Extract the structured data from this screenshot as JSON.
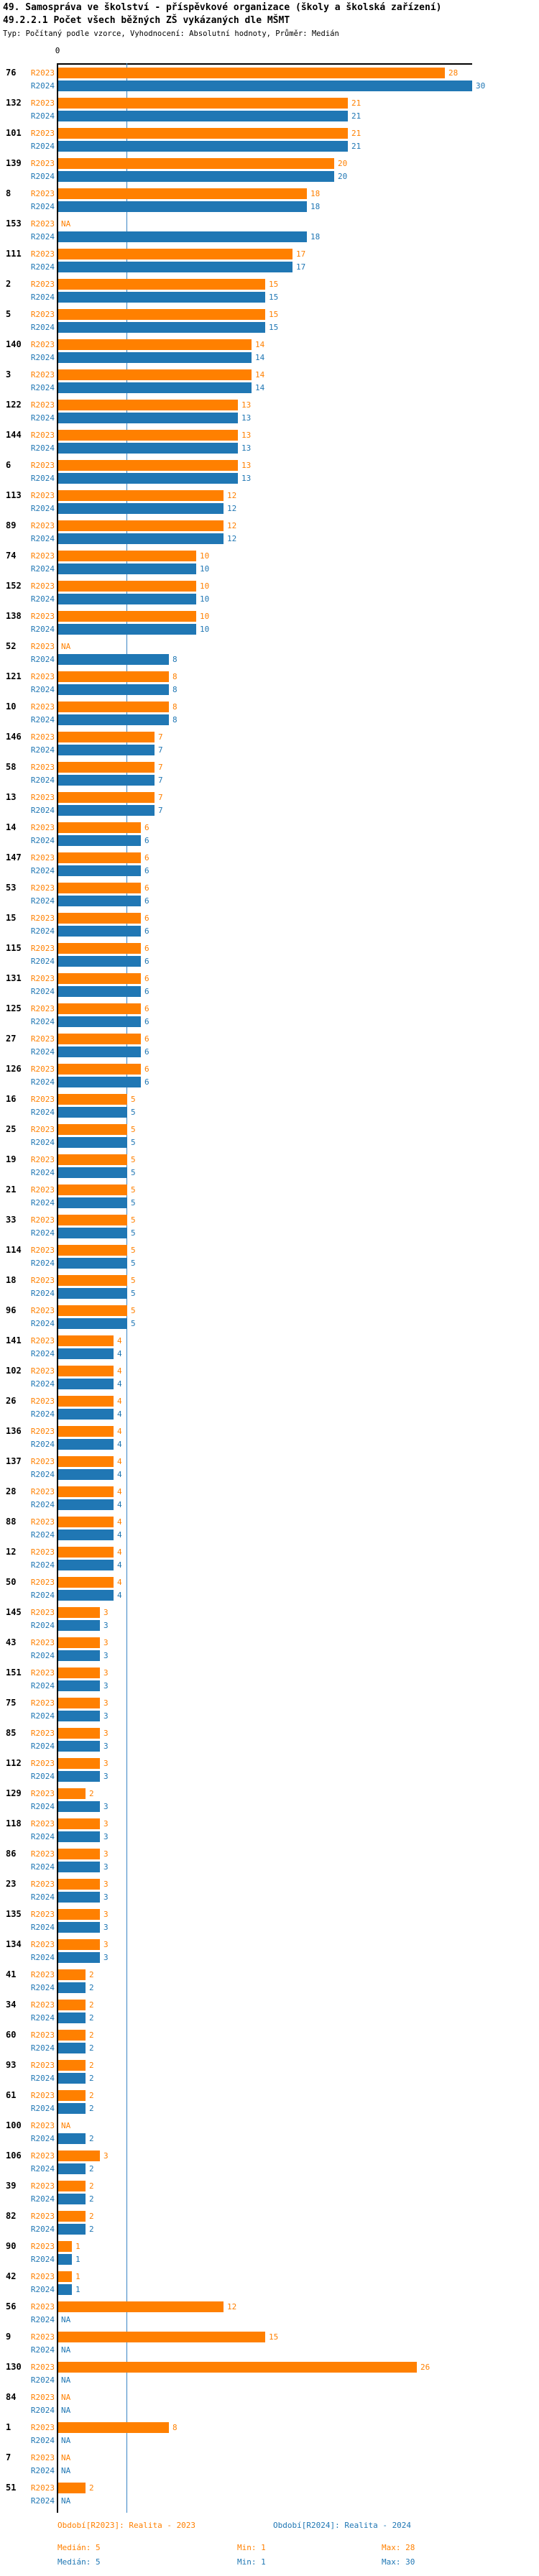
{
  "header": {
    "title": "49. Samospráva ve školství - příspěvkové organizace (školy a školská zařízení)",
    "subtitle": "49.2.2.1 Počet všech běžných ZŠ vykázaných dle MŠMT",
    "meta": "Typ: Počítaný podle vzorce, Vyhodnocení: Absolutní hodnoty, Průměr: Medián"
  },
  "footer": {
    "legend_2023": "Období[R2023]: Realita - 2023",
    "legend_2024": "Období[R2024]: Realita - 2024",
    "stats_2023": {
      "median": "Medián: 5",
      "min": "Min: 1",
      "max": "Max: 28"
    },
    "stats_2024": {
      "median": "Medián: 5",
      "min": "Min: 1",
      "max": "Max: 30"
    }
  },
  "chart_data": {
    "type": "bar",
    "orientation": "horizontal",
    "title": "49.2.2.1 Počet všech běžných ZŠ vykázaných dle MŠMT",
    "series_labels": [
      "R2023",
      "R2024"
    ],
    "na_label": "NA",
    "zero_tick": "0",
    "xlim": [
      0,
      30
    ],
    "median_value": 5,
    "grid": false,
    "colors": {
      "r2023": "#ff8000",
      "r2024": "#2077b4",
      "median_line": "#3a85c4",
      "axis": "#000000"
    },
    "groups": [
      {
        "id": "76",
        "r2023": 28,
        "r2024": 30
      },
      {
        "id": "132",
        "r2023": 21,
        "r2024": 21
      },
      {
        "id": "101",
        "r2023": 21,
        "r2024": 21
      },
      {
        "id": "139",
        "r2023": 20,
        "r2024": 20
      },
      {
        "id": "8",
        "r2023": 18,
        "r2024": 18
      },
      {
        "id": "153",
        "r2023": null,
        "r2024": 18
      },
      {
        "id": "111",
        "r2023": 17,
        "r2024": 17
      },
      {
        "id": "2",
        "r2023": 15,
        "r2024": 15
      },
      {
        "id": "5",
        "r2023": 15,
        "r2024": 15
      },
      {
        "id": "140",
        "r2023": 14,
        "r2024": 14
      },
      {
        "id": "3",
        "r2023": 14,
        "r2024": 14
      },
      {
        "id": "122",
        "r2023": 13,
        "r2024": 13
      },
      {
        "id": "144",
        "r2023": 13,
        "r2024": 13
      },
      {
        "id": "6",
        "r2023": 13,
        "r2024": 13
      },
      {
        "id": "113",
        "r2023": 12,
        "r2024": 12
      },
      {
        "id": "89",
        "r2023": 12,
        "r2024": 12
      },
      {
        "id": "74",
        "r2023": 10,
        "r2024": 10
      },
      {
        "id": "152",
        "r2023": 10,
        "r2024": 10
      },
      {
        "id": "138",
        "r2023": 10,
        "r2024": 10
      },
      {
        "id": "52",
        "r2023": null,
        "r2024": 8
      },
      {
        "id": "121",
        "r2023": 8,
        "r2024": 8
      },
      {
        "id": "10",
        "r2023": 8,
        "r2024": 8
      },
      {
        "id": "146",
        "r2023": 7,
        "r2024": 7
      },
      {
        "id": "58",
        "r2023": 7,
        "r2024": 7
      },
      {
        "id": "13",
        "r2023": 7,
        "r2024": 7
      },
      {
        "id": "14",
        "r2023": 6,
        "r2024": 6
      },
      {
        "id": "147",
        "r2023": 6,
        "r2024": 6
      },
      {
        "id": "53",
        "r2023": 6,
        "r2024": 6
      },
      {
        "id": "15",
        "r2023": 6,
        "r2024": 6
      },
      {
        "id": "115",
        "r2023": 6,
        "r2024": 6
      },
      {
        "id": "131",
        "r2023": 6,
        "r2024": 6
      },
      {
        "id": "125",
        "r2023": 6,
        "r2024": 6
      },
      {
        "id": "27",
        "r2023": 6,
        "r2024": 6
      },
      {
        "id": "126",
        "r2023": 6,
        "r2024": 6
      },
      {
        "id": "16",
        "r2023": 5,
        "r2024": 5
      },
      {
        "id": "25",
        "r2023": 5,
        "r2024": 5
      },
      {
        "id": "19",
        "r2023": 5,
        "r2024": 5
      },
      {
        "id": "21",
        "r2023": 5,
        "r2024": 5
      },
      {
        "id": "33",
        "r2023": 5,
        "r2024": 5
      },
      {
        "id": "114",
        "r2023": 5,
        "r2024": 5
      },
      {
        "id": "18",
        "r2023": 5,
        "r2024": 5
      },
      {
        "id": "96",
        "r2023": 5,
        "r2024": 5
      },
      {
        "id": "141",
        "r2023": 4,
        "r2024": 4
      },
      {
        "id": "102",
        "r2023": 4,
        "r2024": 4
      },
      {
        "id": "26",
        "r2023": 4,
        "r2024": 4
      },
      {
        "id": "136",
        "r2023": 4,
        "r2024": 4
      },
      {
        "id": "137",
        "r2023": 4,
        "r2024": 4
      },
      {
        "id": "28",
        "r2023": 4,
        "r2024": 4
      },
      {
        "id": "88",
        "r2023": 4,
        "r2024": 4
      },
      {
        "id": "12",
        "r2023": 4,
        "r2024": 4
      },
      {
        "id": "50",
        "r2023": 4,
        "r2024": 4
      },
      {
        "id": "145",
        "r2023": 3,
        "r2024": 3
      },
      {
        "id": "43",
        "r2023": 3,
        "r2024": 3
      },
      {
        "id": "151",
        "r2023": 3,
        "r2024": 3
      },
      {
        "id": "75",
        "r2023": 3,
        "r2024": 3
      },
      {
        "id": "85",
        "r2023": 3,
        "r2024": 3
      },
      {
        "id": "112",
        "r2023": 3,
        "r2024": 3
      },
      {
        "id": "129",
        "r2023": 2,
        "r2024": 3
      },
      {
        "id": "118",
        "r2023": 3,
        "r2024": 3
      },
      {
        "id": "86",
        "r2023": 3,
        "r2024": 3
      },
      {
        "id": "23",
        "r2023": 3,
        "r2024": 3
      },
      {
        "id": "135",
        "r2023": 3,
        "r2024": 3
      },
      {
        "id": "134",
        "r2023": 3,
        "r2024": 3
      },
      {
        "id": "41",
        "r2023": 2,
        "r2024": 2
      },
      {
        "id": "34",
        "r2023": 2,
        "r2024": 2
      },
      {
        "id": "60",
        "r2023": 2,
        "r2024": 2
      },
      {
        "id": "93",
        "r2023": 2,
        "r2024": 2
      },
      {
        "id": "61",
        "r2023": 2,
        "r2024": 2
      },
      {
        "id": "100",
        "r2023": null,
        "r2024": 2
      },
      {
        "id": "106",
        "r2023": 3,
        "r2024": 2
      },
      {
        "id": "39",
        "r2023": 2,
        "r2024": 2
      },
      {
        "id": "82",
        "r2023": 2,
        "r2024": 2
      },
      {
        "id": "90",
        "r2023": 1,
        "r2024": 1
      },
      {
        "id": "42",
        "r2023": 1,
        "r2024": 1
      },
      {
        "id": "56",
        "r2023": 12,
        "r2024": null
      },
      {
        "id": "9",
        "r2023": 15,
        "r2024": null
      },
      {
        "id": "130",
        "r2023": 26,
        "r2024": null
      },
      {
        "id": "84",
        "r2023": null,
        "r2024": null
      },
      {
        "id": "1",
        "r2023": 8,
        "r2024": null
      },
      {
        "id": "7",
        "r2023": null,
        "r2024": null
      },
      {
        "id": "51",
        "r2023": 2,
        "r2024": null
      }
    ]
  }
}
